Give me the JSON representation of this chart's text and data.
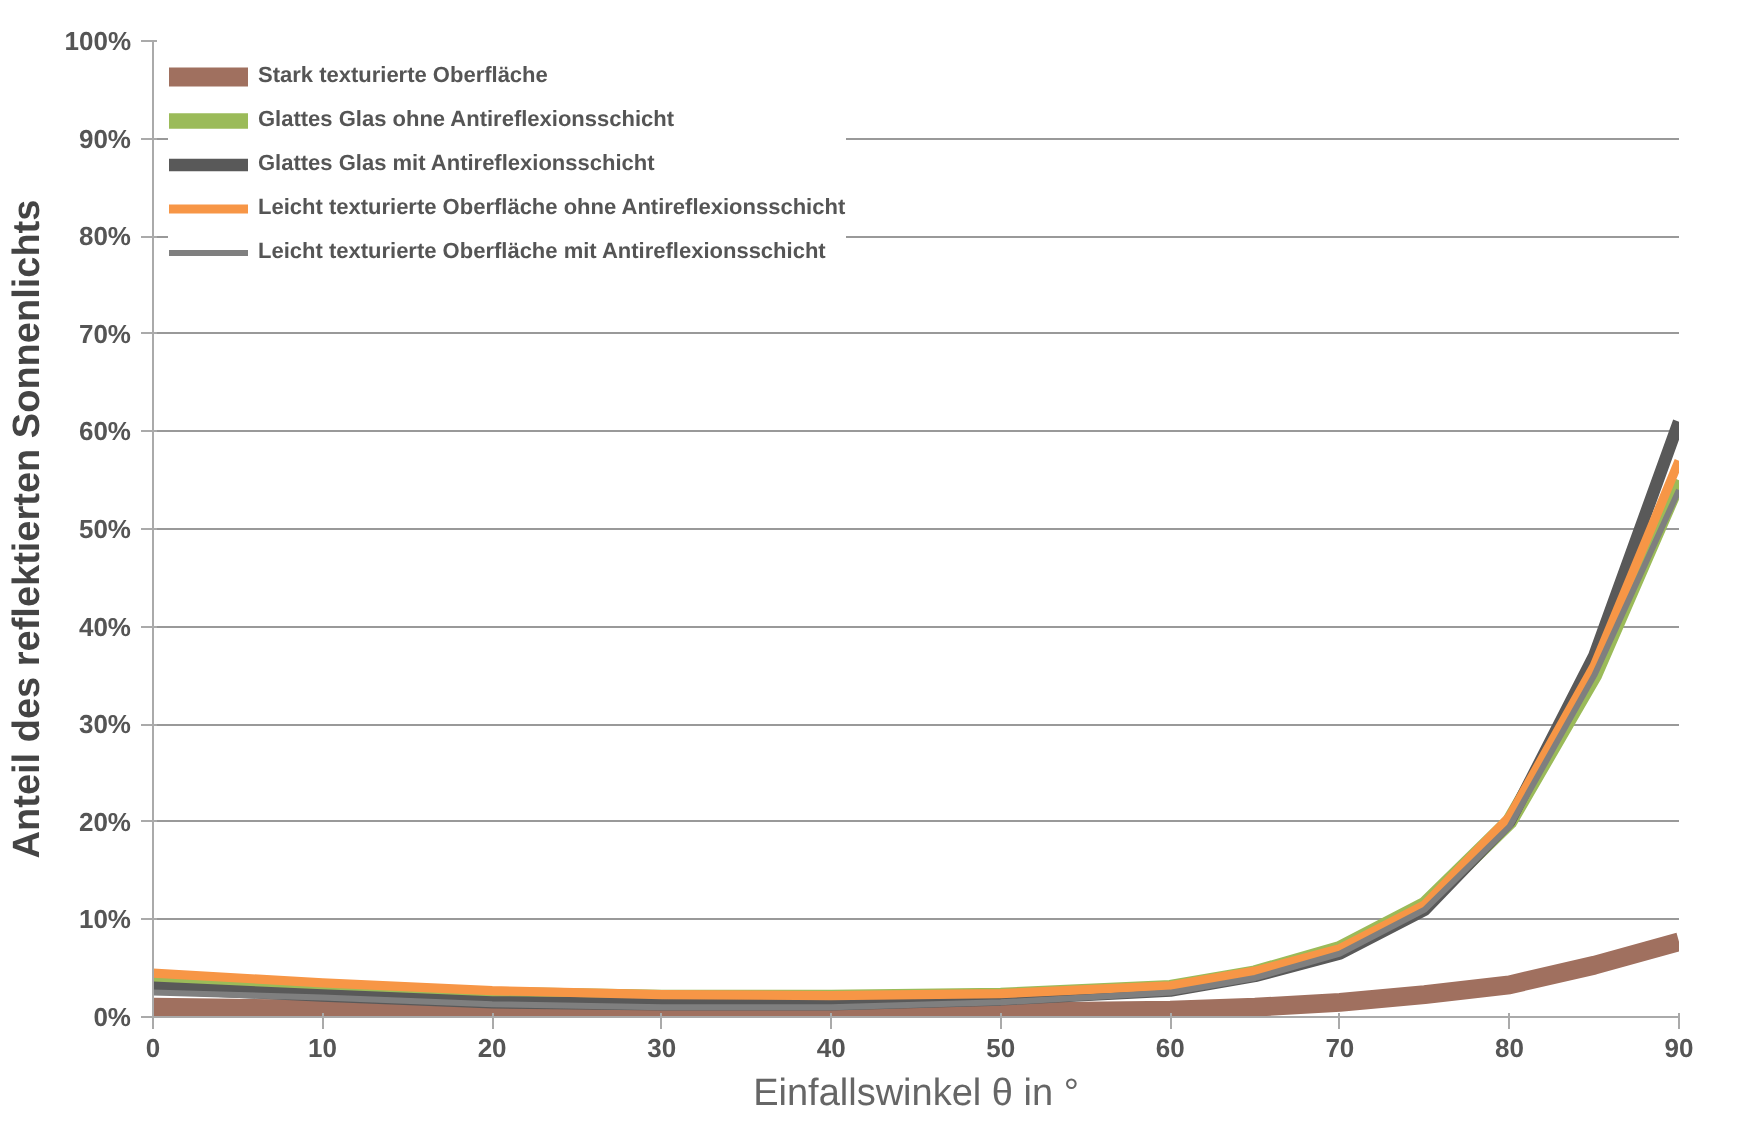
{
  "chart_data": {
    "type": "line",
    "xlabel": "Einfallswinkel θ in °",
    "ylabel": "Anteil des reflektierten Sonnenlichts",
    "x": [
      0,
      10,
      20,
      30,
      40,
      50,
      60,
      65,
      70,
      75,
      80,
      85,
      90
    ],
    "series": [
      {
        "name": "Stark texturierte Oberfläche",
        "color": "#a0705f",
        "values": [
          1.0,
          0.8,
          0.5,
          0.4,
          0.4,
          0.5,
          0.7,
          1.0,
          1.5,
          2.3,
          3.3,
          5.3,
          7.7
        ]
      },
      {
        "name": "Glattes Glas ohne Antireflexionsschicht",
        "color": "#9bbb59",
        "values": [
          4.0,
          3.0,
          2.3,
          2.0,
          2.0,
          2.2,
          3.0,
          4.5,
          7.0,
          11.5,
          20.0,
          35.0,
          55.0
        ]
      },
      {
        "name": "Glattes Glas mit Antireflexionsschicht",
        "color": "#595959",
        "values": [
          3.0,
          2.2,
          1.5,
          1.3,
          1.3,
          1.8,
          2.7,
          4.2,
          6.5,
          11.0,
          20.0,
          37.0,
          61.0
        ]
      },
      {
        "name": "Leicht texturierte Oberfläche ohne Antireflexionsschicht",
        "color": "#f79646",
        "values": [
          4.5,
          3.5,
          2.7,
          2.3,
          2.2,
          2.4,
          3.2,
          4.7,
          7.0,
          11.5,
          20.5,
          36.0,
          57.0
        ]
      },
      {
        "name": "Leicht texturierte Oberfläche mit Antireflexionsschicht",
        "color": "#7f7f7f",
        "values": [
          2.5,
          2.0,
          1.3,
          1.0,
          1.0,
          1.5,
          2.5,
          4.0,
          6.5,
          11.0,
          19.5,
          35.0,
          54.0
        ]
      }
    ],
    "xlim": [
      0,
      90
    ],
    "xticks": [
      0,
      10,
      20,
      30,
      40,
      50,
      60,
      70,
      80,
      90
    ],
    "ylim": [
      0,
      100
    ],
    "yticks": [
      {
        "value": 0,
        "label": "0%"
      },
      {
        "value": 10,
        "label": "10%"
      },
      {
        "value": 20,
        "label": "20%"
      },
      {
        "value": 30,
        "label": "30%"
      },
      {
        "value": 40,
        "label": "40%"
      },
      {
        "value": 50,
        "label": "50%"
      },
      {
        "value": 60,
        "label": "60%"
      },
      {
        "value": 70,
        "label": "70%"
      },
      {
        "value": 80,
        "label": "80%"
      },
      {
        "value": 90,
        "label": "90%"
      },
      {
        "value": 100,
        "label": "100%"
      }
    ],
    "grid": "y",
    "legend": "top left",
    "marker": "none",
    "line_style": "solid"
  }
}
